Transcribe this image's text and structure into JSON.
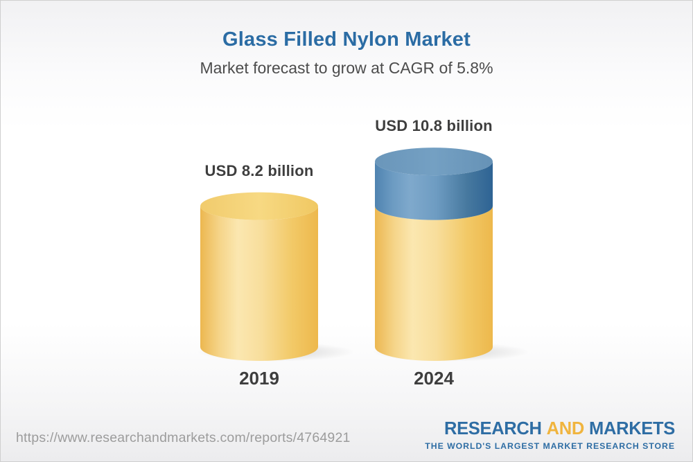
{
  "header": {
    "title": "Glass Filled Nylon Market",
    "subtitle": "Market forecast to grow at CAGR of 5.8%"
  },
  "chart_data": {
    "type": "bar",
    "variant": "3d-cylinder-columns",
    "title": "Glass Filled Nylon Market",
    "subtitle": "Market forecast to grow at CAGR of 5.8%",
    "unit": "USD billion",
    "cagr_percent": 5.8,
    "categories": [
      "2019",
      "2024"
    ],
    "values": [
      8.2,
      10.8
    ],
    "value_labels": [
      "USD 8.2 billion",
      "USD 10.8 billion"
    ],
    "series": [
      {
        "name": "base",
        "values": [
          8.2,
          8.2
        ],
        "color": "#F3C95F"
      },
      {
        "name": "growth",
        "values": [
          0,
          2.6
        ],
        "color": "#5C8BB5"
      }
    ],
    "axes": "none",
    "grid": false,
    "legend": "none"
  },
  "footer": {
    "source_url": "https://www.researchandmarkets.com/reports/4764921",
    "logo": {
      "word1": "RESEARCH",
      "word2": "AND",
      "word3": "MARKETS",
      "tagline": "THE WORLD'S LARGEST MARKET RESEARCH STORE"
    }
  },
  "colors": {
    "title_blue": "#2B6CA4",
    "subtitle_gray": "#4C4C4C",
    "label_dark": "#3E3E3E",
    "url_gray": "#9C9C9C",
    "logo_blue": "#2E6DA4",
    "logo_gold": "#F0B43E",
    "cylinder_yellow": "#F3C95F",
    "cylinder_blue": "#5C8BB5",
    "border_gray": "#CFCFCF"
  }
}
